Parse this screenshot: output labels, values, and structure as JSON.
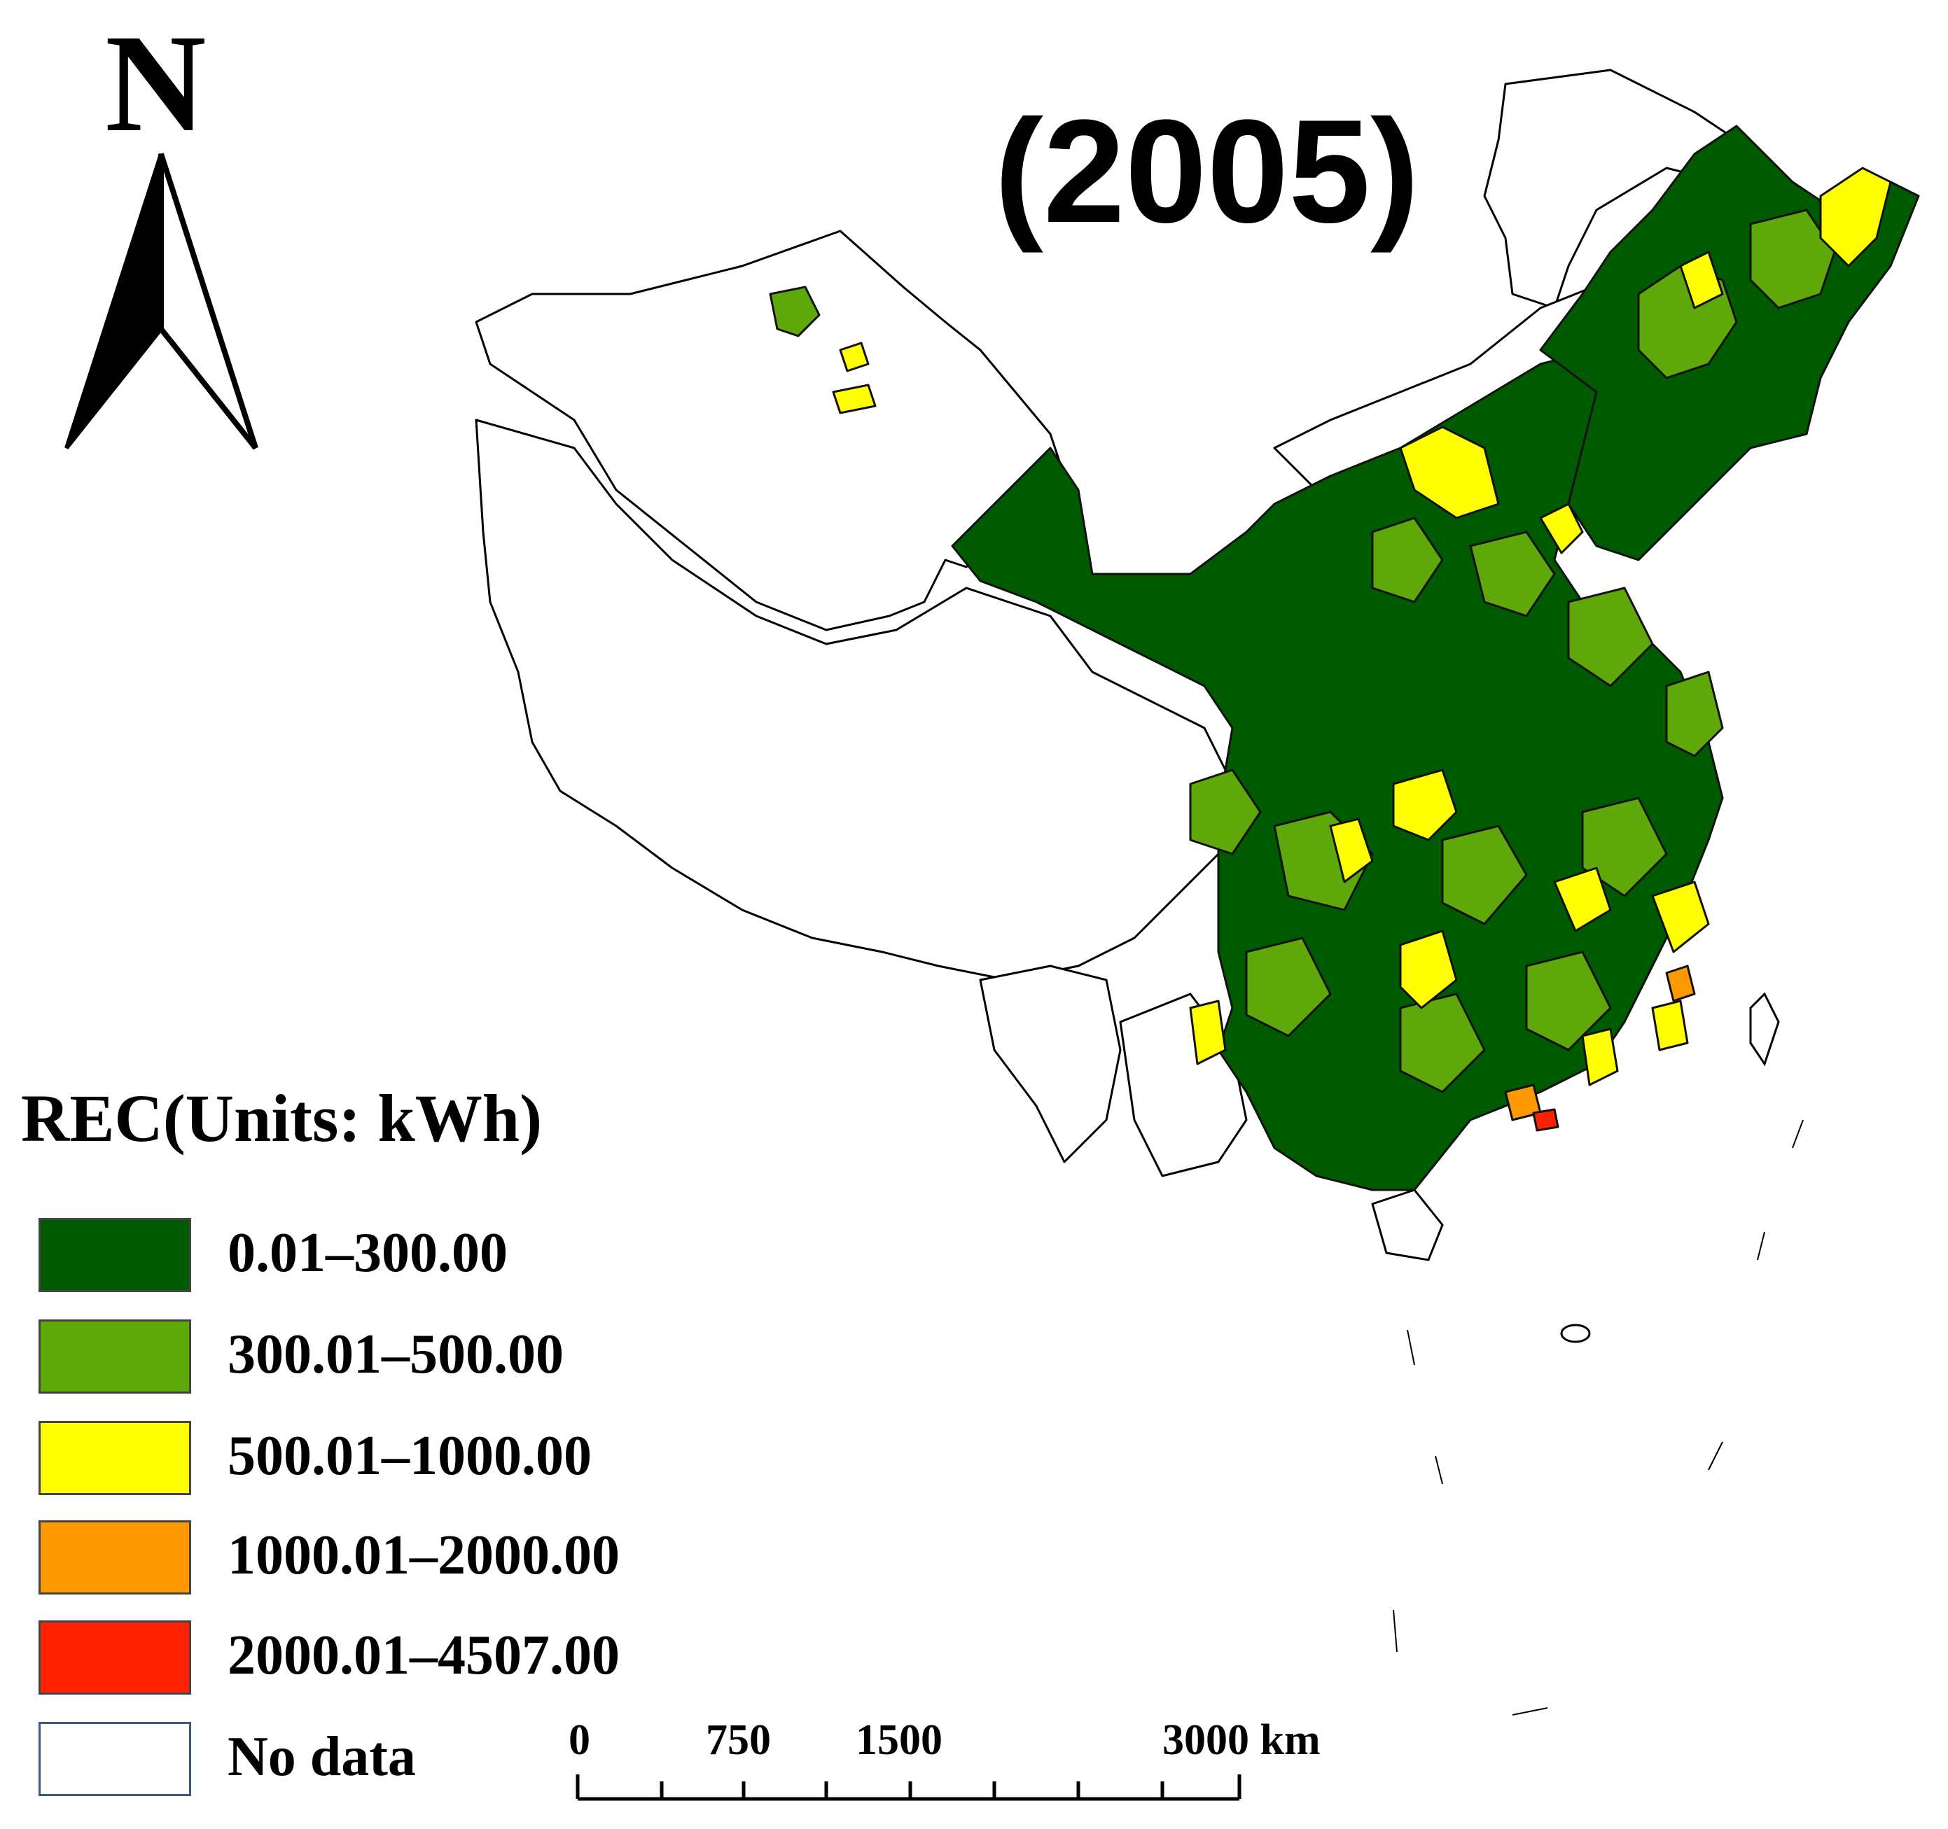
{
  "north_arrow": {
    "letter": "N"
  },
  "title": "(2005)",
  "legend": {
    "title": "REC(Units: kWh)",
    "items": [
      {
        "label": "0.01–300.00",
        "color": "#005a00"
      },
      {
        "label": "300.01–500.00",
        "color": "#5fa80a"
      },
      {
        "label": "500.01–1000.00",
        "color": "#ffff00"
      },
      {
        "label": "1000.01–2000.00",
        "color": "#ff9900"
      },
      {
        "label": "2000.01–4507.00",
        "color": "#ff2200"
      },
      {
        "label": "No data",
        "color": "#ffffff"
      }
    ]
  },
  "scale_bar": {
    "ticks": [
      "0",
      "750",
      "1500",
      "3000 km"
    ]
  }
}
